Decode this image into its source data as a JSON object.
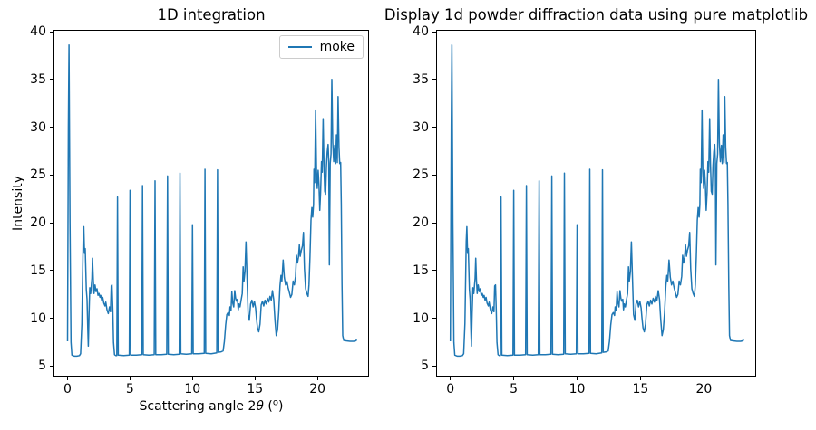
{
  "figure": {
    "background": "#ffffff"
  },
  "chart_data": {
    "type": "line",
    "series_name": "moke",
    "color": "#1f77b4",
    "line_width": 1.5,
    "xlim": [
      -1.05,
      24.05
    ],
    "ylim": [
      4.0,
      40.1
    ],
    "x_ticks": [
      0,
      5,
      10,
      15,
      20
    ],
    "y_ticks": [
      5,
      10,
      15,
      20,
      25,
      30,
      35,
      40
    ],
    "grid": false,
    "charts": [
      {
        "title": "1D integration",
        "ylabel": "Intensity",
        "xlabel_parts": {
          "prefix": "Scattering angle 2",
          "theta": "θ",
          "open": " (",
          "sup": "o",
          "close": ")"
        },
        "legend_label": "moke",
        "legend_position": "upper right"
      },
      {
        "title": "Display 1d powder diffraction data using pure matplotlib",
        "ylabel": "",
        "legend_label": null
      }
    ],
    "points": [
      [
        0.0,
        7.6
      ],
      [
        0.07,
        30.0
      ],
      [
        0.12,
        38.6
      ],
      [
        0.2,
        20.0
      ],
      [
        0.28,
        7.5
      ],
      [
        0.35,
        6.15
      ],
      [
        0.55,
        6.05
      ],
      [
        0.75,
        6.05
      ],
      [
        0.95,
        6.1
      ],
      [
        1.05,
        6.3
      ],
      [
        1.15,
        9.5
      ],
      [
        1.25,
        18.0
      ],
      [
        1.3,
        19.6
      ],
      [
        1.36,
        16.8
      ],
      [
        1.42,
        17.3
      ],
      [
        1.5,
        13.0
      ],
      [
        1.56,
        12.0
      ],
      [
        1.62,
        9.0
      ],
      [
        1.66,
        7.1
      ],
      [
        1.72,
        10.5
      ],
      [
        1.78,
        13.2
      ],
      [
        1.85,
        12.6
      ],
      [
        1.95,
        14.2
      ],
      [
        2.0,
        16.3
      ],
      [
        2.06,
        14.0
      ],
      [
        2.12,
        12.6
      ],
      [
        2.2,
        13.5
      ],
      [
        2.28,
        12.8
      ],
      [
        2.36,
        13.1
      ],
      [
        2.44,
        12.4
      ],
      [
        2.52,
        12.6
      ],
      [
        2.6,
        12.2
      ],
      [
        2.66,
        12.4
      ],
      [
        2.74,
        11.9
      ],
      [
        2.82,
        12.2
      ],
      [
        2.9,
        11.6
      ],
      [
        3.0,
        11.3
      ],
      [
        3.06,
        11.7
      ],
      [
        3.16,
        10.9
      ],
      [
        3.26,
        10.5
      ],
      [
        3.36,
        11.2
      ],
      [
        3.44,
        10.7
      ],
      [
        3.5,
        13.4
      ],
      [
        3.56,
        13.5
      ],
      [
        3.62,
        11.0
      ],
      [
        3.68,
        7.5
      ],
      [
        3.76,
        6.2
      ],
      [
        3.86,
        6.1
      ],
      [
        3.94,
        6.1
      ],
      [
        4.0,
        22.7
      ],
      [
        4.06,
        6.15
      ],
      [
        4.5,
        6.1
      ],
      [
        4.94,
        6.15
      ],
      [
        5.0,
        23.4
      ],
      [
        5.06,
        6.15
      ],
      [
        5.5,
        6.15
      ],
      [
        5.94,
        6.2
      ],
      [
        6.0,
        23.9
      ],
      [
        6.06,
        6.2
      ],
      [
        6.5,
        6.15
      ],
      [
        6.94,
        6.2
      ],
      [
        7.0,
        24.4
      ],
      [
        7.06,
        6.2
      ],
      [
        7.5,
        6.2
      ],
      [
        7.94,
        6.25
      ],
      [
        8.0,
        24.9
      ],
      [
        8.06,
        6.25
      ],
      [
        8.5,
        6.2
      ],
      [
        8.94,
        6.25
      ],
      [
        9.0,
        25.2
      ],
      [
        9.06,
        6.3
      ],
      [
        9.5,
        6.25
      ],
      [
        9.94,
        6.3
      ],
      [
        10.0,
        19.8
      ],
      [
        10.06,
        6.3
      ],
      [
        10.5,
        6.3
      ],
      [
        10.94,
        6.35
      ],
      [
        11.0,
        25.6
      ],
      [
        11.06,
        6.35
      ],
      [
        11.5,
        6.3
      ],
      [
        11.94,
        6.4
      ],
      [
        12.0,
        25.55
      ],
      [
        12.06,
        6.45
      ],
      [
        12.3,
        6.5
      ],
      [
        12.45,
        6.6
      ],
      [
        12.55,
        7.6
      ],
      [
        12.65,
        9.3
      ],
      [
        12.75,
        10.4
      ],
      [
        12.85,
        10.6
      ],
      [
        12.95,
        10.3
      ],
      [
        13.0,
        11.2
      ],
      [
        13.08,
        10.8
      ],
      [
        13.15,
        12.8
      ],
      [
        13.22,
        11.6
      ],
      [
        13.3,
        11.2
      ],
      [
        13.38,
        12.9
      ],
      [
        13.45,
        12.1
      ],
      [
        13.52,
        11.8
      ],
      [
        13.6,
        12.0
      ],
      [
        13.66,
        10.9
      ],
      [
        13.72,
        11.5
      ],
      [
        13.8,
        11.2
      ],
      [
        13.9,
        12.0
      ],
      [
        13.98,
        12.6
      ],
      [
        14.05,
        15.4
      ],
      [
        14.12,
        13.9
      ],
      [
        14.2,
        14.9
      ],
      [
        14.28,
        18.0
      ],
      [
        14.36,
        14.5
      ],
      [
        14.45,
        10.4
      ],
      [
        14.55,
        9.8
      ],
      [
        14.65,
        11.5
      ],
      [
        14.75,
        11.9
      ],
      [
        14.85,
        11.2
      ],
      [
        14.95,
        11.8
      ],
      [
        15.05,
        11.1
      ],
      [
        15.12,
        10.0
      ],
      [
        15.2,
        9.0
      ],
      [
        15.3,
        8.6
      ],
      [
        15.4,
        9.4
      ],
      [
        15.5,
        11.4
      ],
      [
        15.6,
        11.8
      ],
      [
        15.7,
        11.3
      ],
      [
        15.8,
        11.9
      ],
      [
        15.9,
        11.5
      ],
      [
        16.0,
        12.1
      ],
      [
        16.1,
        11.7
      ],
      [
        16.2,
        12.3
      ],
      [
        16.3,
        11.9
      ],
      [
        16.4,
        12.9
      ],
      [
        16.5,
        12.0
      ],
      [
        16.6,
        9.8
      ],
      [
        16.7,
        8.2
      ],
      [
        16.8,
        8.8
      ],
      [
        16.9,
        10.6
      ],
      [
        17.0,
        13.4
      ],
      [
        17.08,
        14.5
      ],
      [
        17.15,
        13.9
      ],
      [
        17.25,
        16.1
      ],
      [
        17.35,
        14.3
      ],
      [
        17.45,
        13.5
      ],
      [
        17.55,
        13.9
      ],
      [
        17.65,
        13.2
      ],
      [
        17.75,
        12.7
      ],
      [
        17.85,
        12.2
      ],
      [
        17.95,
        12.5
      ],
      [
        18.05,
        13.9
      ],
      [
        18.15,
        13.5
      ],
      [
        18.25,
        14.4
      ],
      [
        18.32,
        16.6
      ],
      [
        18.4,
        15.8
      ],
      [
        18.48,
        16.4
      ],
      [
        18.55,
        17.7
      ],
      [
        18.62,
        16.5
      ],
      [
        18.7,
        17.1
      ],
      [
        18.8,
        17.6
      ],
      [
        18.88,
        19.0
      ],
      [
        18.96,
        15.2
      ],
      [
        19.05,
        13.1
      ],
      [
        19.15,
        12.6
      ],
      [
        19.25,
        12.3
      ],
      [
        19.32,
        13.5
      ],
      [
        19.4,
        16.5
      ],
      [
        19.48,
        20.3
      ],
      [
        19.55,
        21.6
      ],
      [
        19.62,
        20.6
      ],
      [
        19.68,
        21.9
      ],
      [
        19.72,
        25.6
      ],
      [
        19.78,
        24.2
      ],
      [
        19.85,
        31.8
      ],
      [
        19.92,
        25.4
      ],
      [
        19.98,
        23.6
      ],
      [
        20.05,
        25.5
      ],
      [
        20.12,
        24.0
      ],
      [
        20.18,
        21.3
      ],
      [
        20.25,
        23.2
      ],
      [
        20.32,
        26.4
      ],
      [
        20.38,
        25.3
      ],
      [
        20.45,
        30.9
      ],
      [
        20.52,
        26.2
      ],
      [
        20.58,
        23.3
      ],
      [
        20.65,
        23.0
      ],
      [
        20.72,
        26.0
      ],
      [
        20.78,
        27.4
      ],
      [
        20.85,
        28.2
      ],
      [
        20.9,
        26.4
      ],
      [
        20.95,
        15.6
      ],
      [
        21.02,
        26.2
      ],
      [
        21.08,
        27.2
      ],
      [
        21.15,
        35.0
      ],
      [
        21.22,
        28.4
      ],
      [
        21.3,
        26.4
      ],
      [
        21.38,
        28.1
      ],
      [
        21.45,
        26.2
      ],
      [
        21.52,
        29.2
      ],
      [
        21.58,
        26.3
      ],
      [
        21.65,
        33.2
      ],
      [
        21.72,
        27.9
      ],
      [
        21.78,
        26.2
      ],
      [
        21.85,
        26.3
      ],
      [
        21.9,
        22.0
      ],
      [
        21.96,
        13.5
      ],
      [
        22.02,
        8.2
      ],
      [
        22.1,
        7.7
      ],
      [
        22.3,
        7.65
      ],
      [
        22.6,
        7.6
      ],
      [
        22.9,
        7.6
      ],
      [
        23.05,
        7.65
      ],
      [
        23.15,
        7.75
      ]
    ]
  }
}
